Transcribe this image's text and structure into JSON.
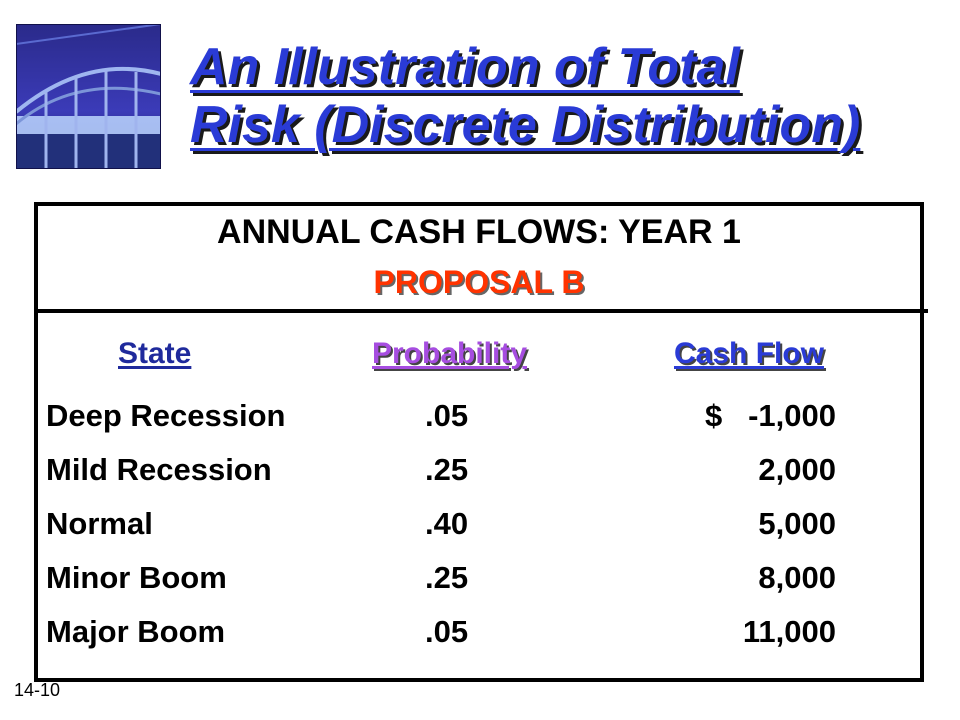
{
  "title": {
    "line1": "An Illustration of Total",
    "line2": "Risk (Discrete Distribution)"
  },
  "box": {
    "header": "ANNUAL CASH FLOWS:  YEAR 1",
    "subheader": "PROPOSAL B"
  },
  "table": {
    "columns": {
      "state": "State",
      "probability": "Probability",
      "cash_flow": "Cash Flow"
    },
    "rows": [
      {
        "state": "Deep Recession",
        "probability": ".05",
        "cash_flow": "$   -1,000"
      },
      {
        "state": "Mild Recession",
        "probability": ".25",
        "cash_flow": "2,000"
      },
      {
        "state": "Normal",
        "probability": ".40",
        "cash_flow": "5,000"
      },
      {
        "state": "Minor Boom",
        "probability": ".25",
        "cash_flow": "8,000"
      },
      {
        "state": "Major Boom",
        "probability": ".05",
        "cash_flow": "11,000"
      }
    ]
  },
  "slide_number": "14-10",
  "colors": {
    "title": "#2a3bd6",
    "proposal": "#ff3300",
    "probability_header": "#a64de0"
  },
  "icons": {
    "logo": "bridge-photo-icon"
  }
}
